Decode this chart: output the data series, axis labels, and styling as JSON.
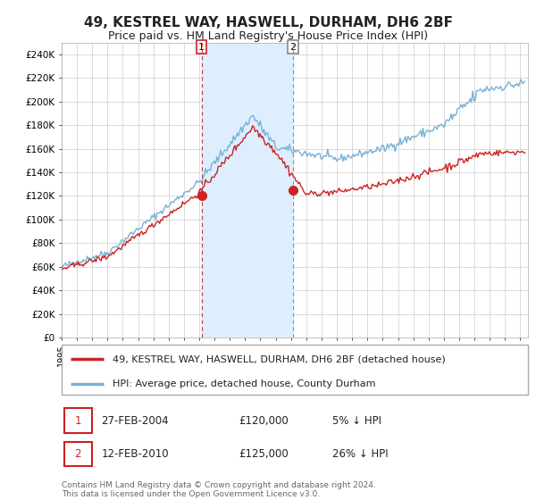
{
  "title": "49, KESTREL WAY, HASWELL, DURHAM, DH6 2BF",
  "subtitle": "Price paid vs. HM Land Registry's House Price Index (HPI)",
  "ylim": [
    0,
    250000
  ],
  "xlim_start": 1995.0,
  "xlim_end": 2025.5,
  "background_color": "#ffffff",
  "plot_bg_color": "#ffffff",
  "grid_color": "#cccccc",
  "hpi_color": "#7ab0d4",
  "price_color": "#cc2222",
  "shade_color": "#ddeeff",
  "marker1_x": 2004.15,
  "marker1_y": 120000,
  "marker2_x": 2010.12,
  "marker2_y": 125000,
  "vline1_x": 2004.15,
  "vline2_x": 2010.12,
  "legend_label1": "49, KESTREL WAY, HASWELL, DURHAM, DH6 2BF (detached house)",
  "legend_label2": "HPI: Average price, detached house, County Durham",
  "table_row1": [
    "1",
    "27-FEB-2004",
    "£120,000",
    "5% ↓ HPI"
  ],
  "table_row2": [
    "2",
    "12-FEB-2010",
    "£125,000",
    "26% ↓ HPI"
  ],
  "footnote": "Contains HM Land Registry data © Crown copyright and database right 2024.\nThis data is licensed under the Open Government Licence v3.0.",
  "ytick_labels": [
    "£0",
    "£20K",
    "£40K",
    "£60K",
    "£80K",
    "£100K",
    "£120K",
    "£140K",
    "£160K",
    "£180K",
    "£200K",
    "£220K",
    "£240K"
  ],
  "ytick_values": [
    0,
    20000,
    40000,
    60000,
    80000,
    100000,
    120000,
    140000,
    160000,
    180000,
    200000,
    220000,
    240000
  ],
  "title_fontsize": 11,
  "subtitle_fontsize": 9,
  "tick_fontsize": 7.5,
  "legend_fontsize": 8,
  "table_fontsize": 8.5,
  "footnote_fontsize": 6.5
}
